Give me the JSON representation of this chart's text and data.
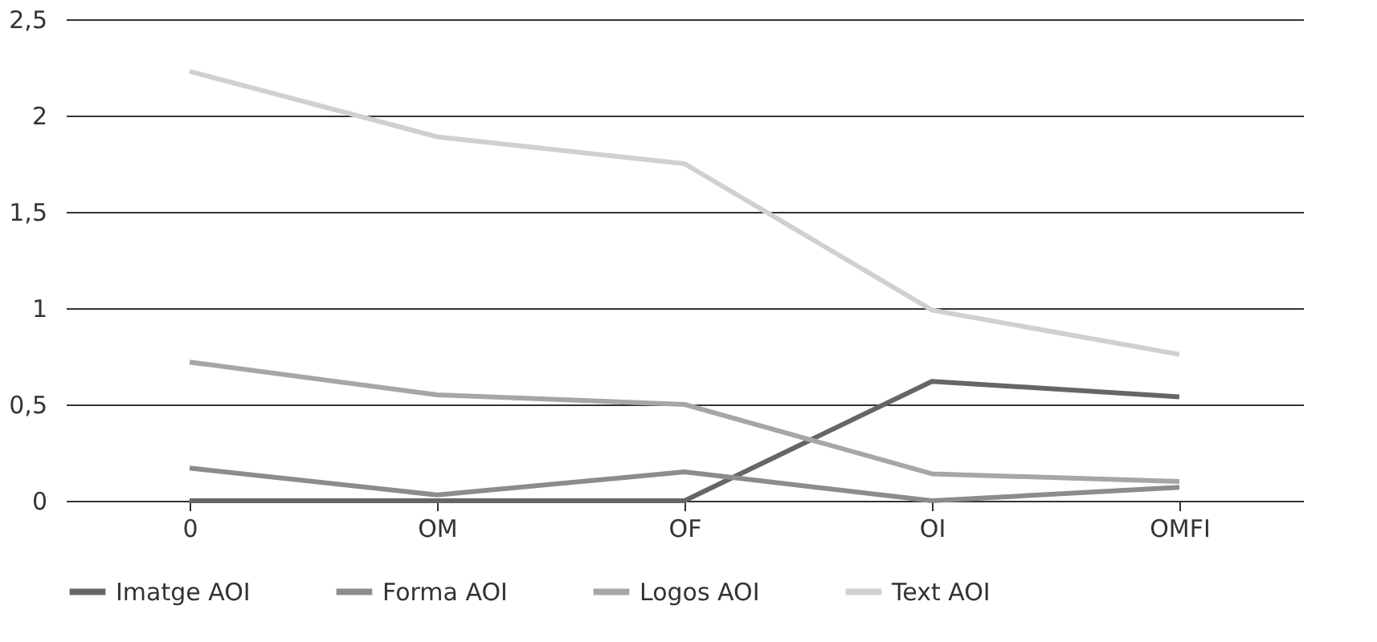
{
  "chart_data": {
    "type": "line",
    "categories": [
      "0",
      "OM",
      "OF",
      "OI",
      "OMFI"
    ],
    "series": [
      {
        "name": "Imatge AOI",
        "color": "#666666",
        "values": [
          0,
          0,
          0,
          0.62,
          0.54
        ]
      },
      {
        "name": "Forma AOI",
        "color": "#8c8c8c",
        "values": [
          0.17,
          0.03,
          0.15,
          0,
          0.07
        ]
      },
      {
        "name": "Logos AOI",
        "color": "#a6a6a6",
        "values": [
          0.72,
          0.55,
          0.5,
          0.14,
          0.1
        ]
      },
      {
        "name": "Text AOI",
        "color": "#d0d0d0",
        "values": [
          2.23,
          1.89,
          1.75,
          0.99,
          0.76
        ]
      }
    ],
    "ylim": [
      0,
      2.5
    ],
    "yticks": [
      {
        "value": 0,
        "label": "0"
      },
      {
        "value": 0.5,
        "label": "0,5"
      },
      {
        "value": 1,
        "label": "1"
      },
      {
        "value": 1.5,
        "label": "1,5"
      },
      {
        "value": 2,
        "label": "2"
      },
      {
        "value": 2.5,
        "label": "2,5"
      }
    ],
    "grid": "y",
    "legend": "bottom",
    "marker": "none",
    "line_style": "solid"
  }
}
